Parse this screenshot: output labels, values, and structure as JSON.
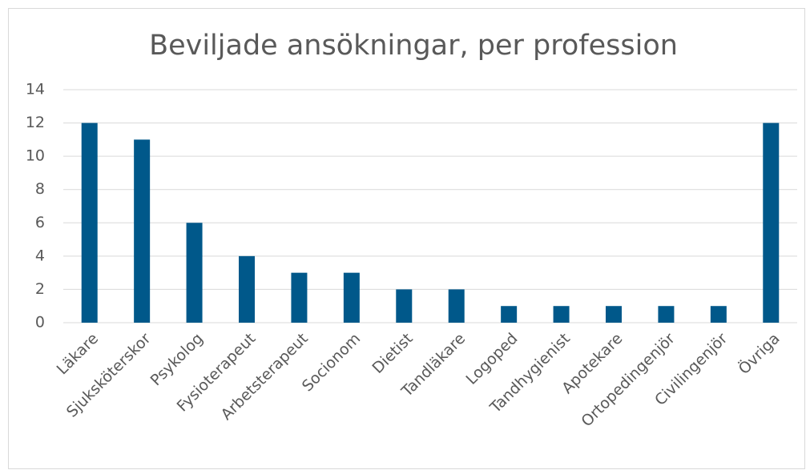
{
  "chart_data": {
    "type": "bar",
    "title": "Beviljade ansökningar, per profession",
    "categories": [
      "Läkare",
      "Sjuksköterskor",
      "Psykolog",
      "Fysioterapeut",
      "Arbetsterapeut",
      "Socionom",
      "Dietist",
      "Tandläkare",
      "Logoped",
      "Tandhygienist",
      "Apotekare",
      "Ortopedingenjör",
      "Civilingenjör",
      "Övriga"
    ],
    "values": [
      12,
      11,
      6,
      4,
      3,
      3,
      2,
      2,
      1,
      1,
      1,
      1,
      1,
      12
    ],
    "color": "#00588a",
    "ylim": [
      0,
      14
    ],
    "yticks": [
      0,
      2,
      4,
      6,
      8,
      10,
      12,
      14
    ],
    "grid": true
  }
}
